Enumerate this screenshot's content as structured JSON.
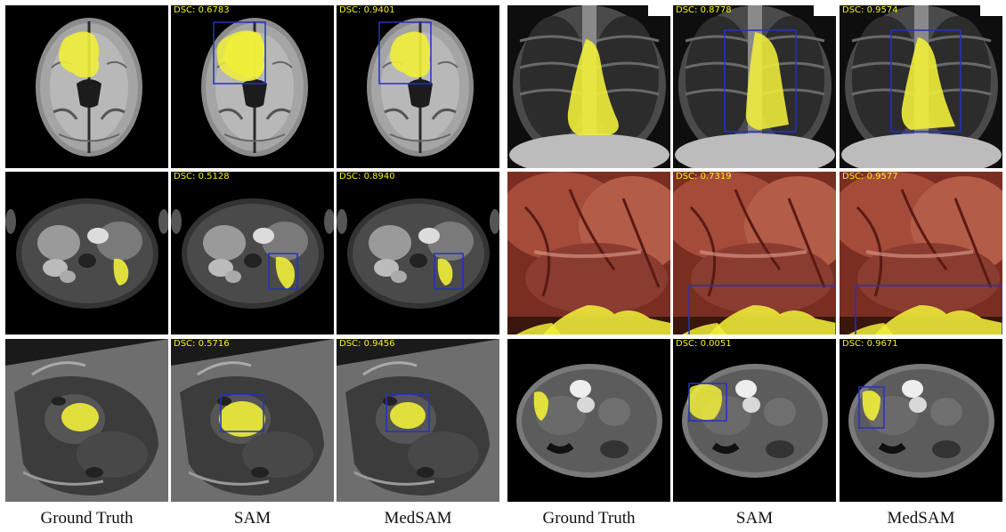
{
  "panel_left": {
    "columns": [
      "Ground Truth",
      "SAM",
      "MedSAM"
    ],
    "rows": [
      {
        "modality": "brain-mri",
        "dsc": [
          "",
          "DSC: 0.6783",
          "DSC: 0.9401"
        ]
      },
      {
        "modality": "abdomen-mri",
        "dsc": [
          "",
          "DSC: 0.5128",
          "DSC: 0.8940"
        ]
      },
      {
        "modality": "cardiac-mri",
        "dsc": [
          "",
          "DSC: 0.5716",
          "DSC: 0.9456"
        ]
      }
    ]
  },
  "panel_right": {
    "columns": [
      "Ground Truth",
      "SAM",
      "MedSAM"
    ],
    "rows": [
      {
        "modality": "chest-xray",
        "dsc": [
          "",
          "DSC: 0.8778",
          "DSC: 0.9574"
        ]
      },
      {
        "modality": "endoscopy",
        "dsc": [
          "",
          "DSC: 0.7319",
          "DSC: 0.9577"
        ]
      },
      {
        "modality": "abdomen-ct",
        "dsc": [
          "",
          "DSC: 0.0051",
          "DSC: 0.9671"
        ]
      }
    ]
  },
  "colors": {
    "mask": "#f0ee3a",
    "box": "#2430c8",
    "dsc_text": "#f4f21a"
  }
}
